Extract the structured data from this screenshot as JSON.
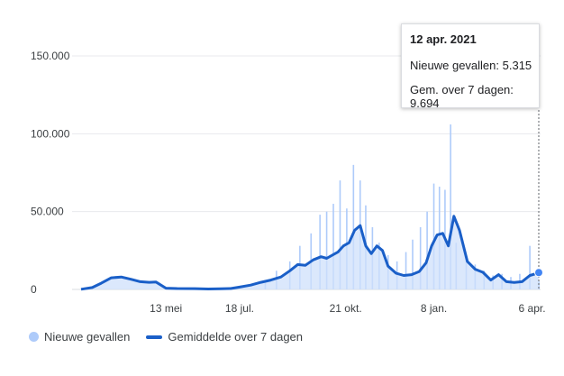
{
  "chart_data": {
    "type": "bar",
    "y_ticks": [
      "150.000",
      "100.000",
      "50.000",
      "0"
    ],
    "ylim": [
      0,
      150000
    ],
    "x_range": [
      "2020-02-27",
      "2021-04-12"
    ],
    "x_ticks": [
      {
        "label": "13 mei",
        "date": "2020-05-13"
      },
      {
        "label": "18 jul.",
        "date": "2020-07-18"
      },
      {
        "label": "21 okt.",
        "date": "2020-10-21"
      },
      {
        "label": "8 jan.",
        "date": "2021-01-08"
      },
      {
        "label": "6 apr.",
        "date": "2021-04-06"
      }
    ],
    "grid": true,
    "legend_position": "bottom-left",
    "series": [
      {
        "name": "Nieuwe gevallen",
        "kind": "bar",
        "color": "#aecbfa",
        "x": [
          "2020-08-10",
          "2020-08-20",
          "2020-09-01",
          "2020-09-10",
          "2020-09-20",
          "2020-09-28",
          "2020-10-04",
          "2020-10-10",
          "2020-10-16",
          "2020-10-22",
          "2020-10-28",
          "2020-11-03",
          "2020-11-08",
          "2020-11-14",
          "2020-11-20",
          "2020-11-28",
          "2020-12-06",
          "2020-12-14",
          "2020-12-20",
          "2020-12-27",
          "2021-01-02",
          "2021-01-08",
          "2021-01-13",
          "2021-01-18",
          "2021-01-23",
          "2021-01-28",
          "2021-02-06",
          "2021-02-14",
          "2021-02-22",
          "2021-03-02",
          "2021-03-10",
          "2021-03-18",
          "2021-03-26",
          "2021-04-04",
          "2021-04-12"
        ],
        "values": [
          6000,
          12000,
          18000,
          28000,
          36000,
          48000,
          50000,
          55000,
          70000,
          52000,
          80000,
          70000,
          54000,
          40000,
          30000,
          22000,
          18000,
          24000,
          32000,
          40000,
          50000,
          68000,
          66000,
          64000,
          106000,
          30000,
          22000,
          16000,
          12000,
          9000,
          10000,
          8000,
          10000,
          28000,
          5315
        ]
      },
      {
        "name": "Gemiddelde over 7 dagen",
        "kind": "line",
        "color": "#1a5fc8",
        "x": [
          "2020-02-27",
          "2020-03-08",
          "2020-03-16",
          "2020-03-25",
          "2020-04-03",
          "2020-04-12",
          "2020-04-20",
          "2020-04-28",
          "2020-05-04",
          "2020-05-13",
          "2020-05-23",
          "2020-06-08",
          "2020-06-20",
          "2020-07-01",
          "2020-07-10",
          "2020-07-18",
          "2020-07-28",
          "2020-08-06",
          "2020-08-15",
          "2020-08-24",
          "2020-09-01",
          "2020-09-08",
          "2020-09-15",
          "2020-09-22",
          "2020-09-29",
          "2020-10-04",
          "2020-10-09",
          "2020-10-14",
          "2020-10-19",
          "2020-10-24",
          "2020-10-29",
          "2020-11-03",
          "2020-11-08",
          "2020-11-13",
          "2020-11-18",
          "2020-11-23",
          "2020-11-28",
          "2020-12-05",
          "2020-12-12",
          "2020-12-19",
          "2020-12-26",
          "2021-01-01",
          "2021-01-06",
          "2021-01-11",
          "2021-01-16",
          "2021-01-21",
          "2021-01-26",
          "2021-01-31",
          "2021-02-07",
          "2021-02-14",
          "2021-02-21",
          "2021-02-28",
          "2021-03-07",
          "2021-03-14",
          "2021-03-21",
          "2021-03-28",
          "2021-04-04",
          "2021-04-09",
          "2021-04-12"
        ],
        "values": [
          100,
          1200,
          4000,
          7500,
          8000,
          6500,
          5000,
          4600,
          4800,
          800,
          600,
          500,
          300,
          400,
          600,
          1500,
          2800,
          4600,
          6000,
          8000,
          12000,
          16000,
          15500,
          19000,
          21000,
          20000,
          22000,
          24000,
          28000,
          30000,
          38000,
          41000,
          28000,
          23000,
          28000,
          25000,
          15000,
          10500,
          9000,
          9500,
          11500,
          17000,
          28000,
          35000,
          36000,
          28000,
          47000,
          38000,
          18000,
          13000,
          11000,
          6000,
          9500,
          5000,
          4500,
          5000,
          9000,
          10000,
          9694
        ]
      }
    ]
  },
  "tooltip": {
    "date": "12 apr. 2021",
    "line1": "Nieuwe gevallen: 5.315",
    "line2": "Gem. over 7 dagen: 9.694"
  },
  "legend": {
    "item1": "Nieuwe gevallen",
    "item2": "Gemiddelde over 7 dagen"
  }
}
